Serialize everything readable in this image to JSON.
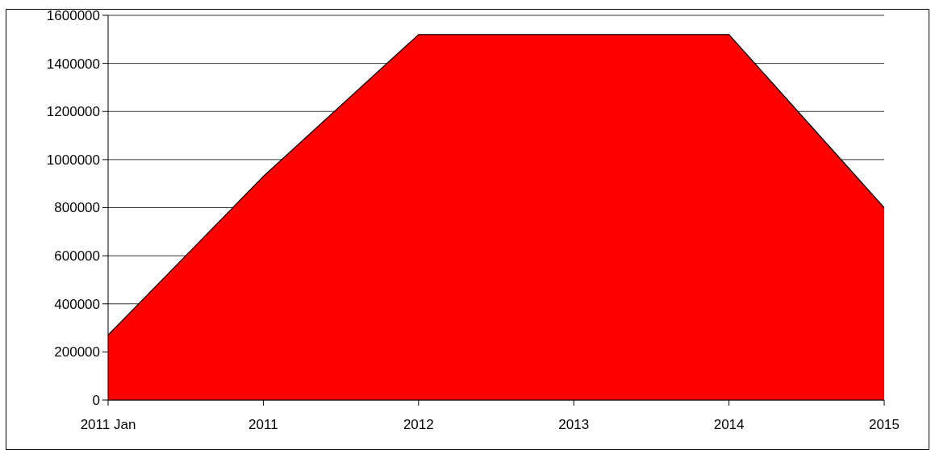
{
  "chart_data": {
    "type": "area",
    "categories": [
      "2011 Jan",
      "2011",
      "2012",
      "2013",
      "2014",
      "2015"
    ],
    "series": [
      {
        "color": "#ff0000",
        "values": [
          270000,
          930000,
          1520000,
          1520000,
          1520000,
          800000
        ]
      }
    ],
    "ylim": [
      0,
      1600000
    ],
    "yticks": [
      0,
      200000,
      400000,
      600000,
      800000,
      1000000,
      1200000,
      1400000,
      1600000
    ],
    "grid": "y"
  }
}
